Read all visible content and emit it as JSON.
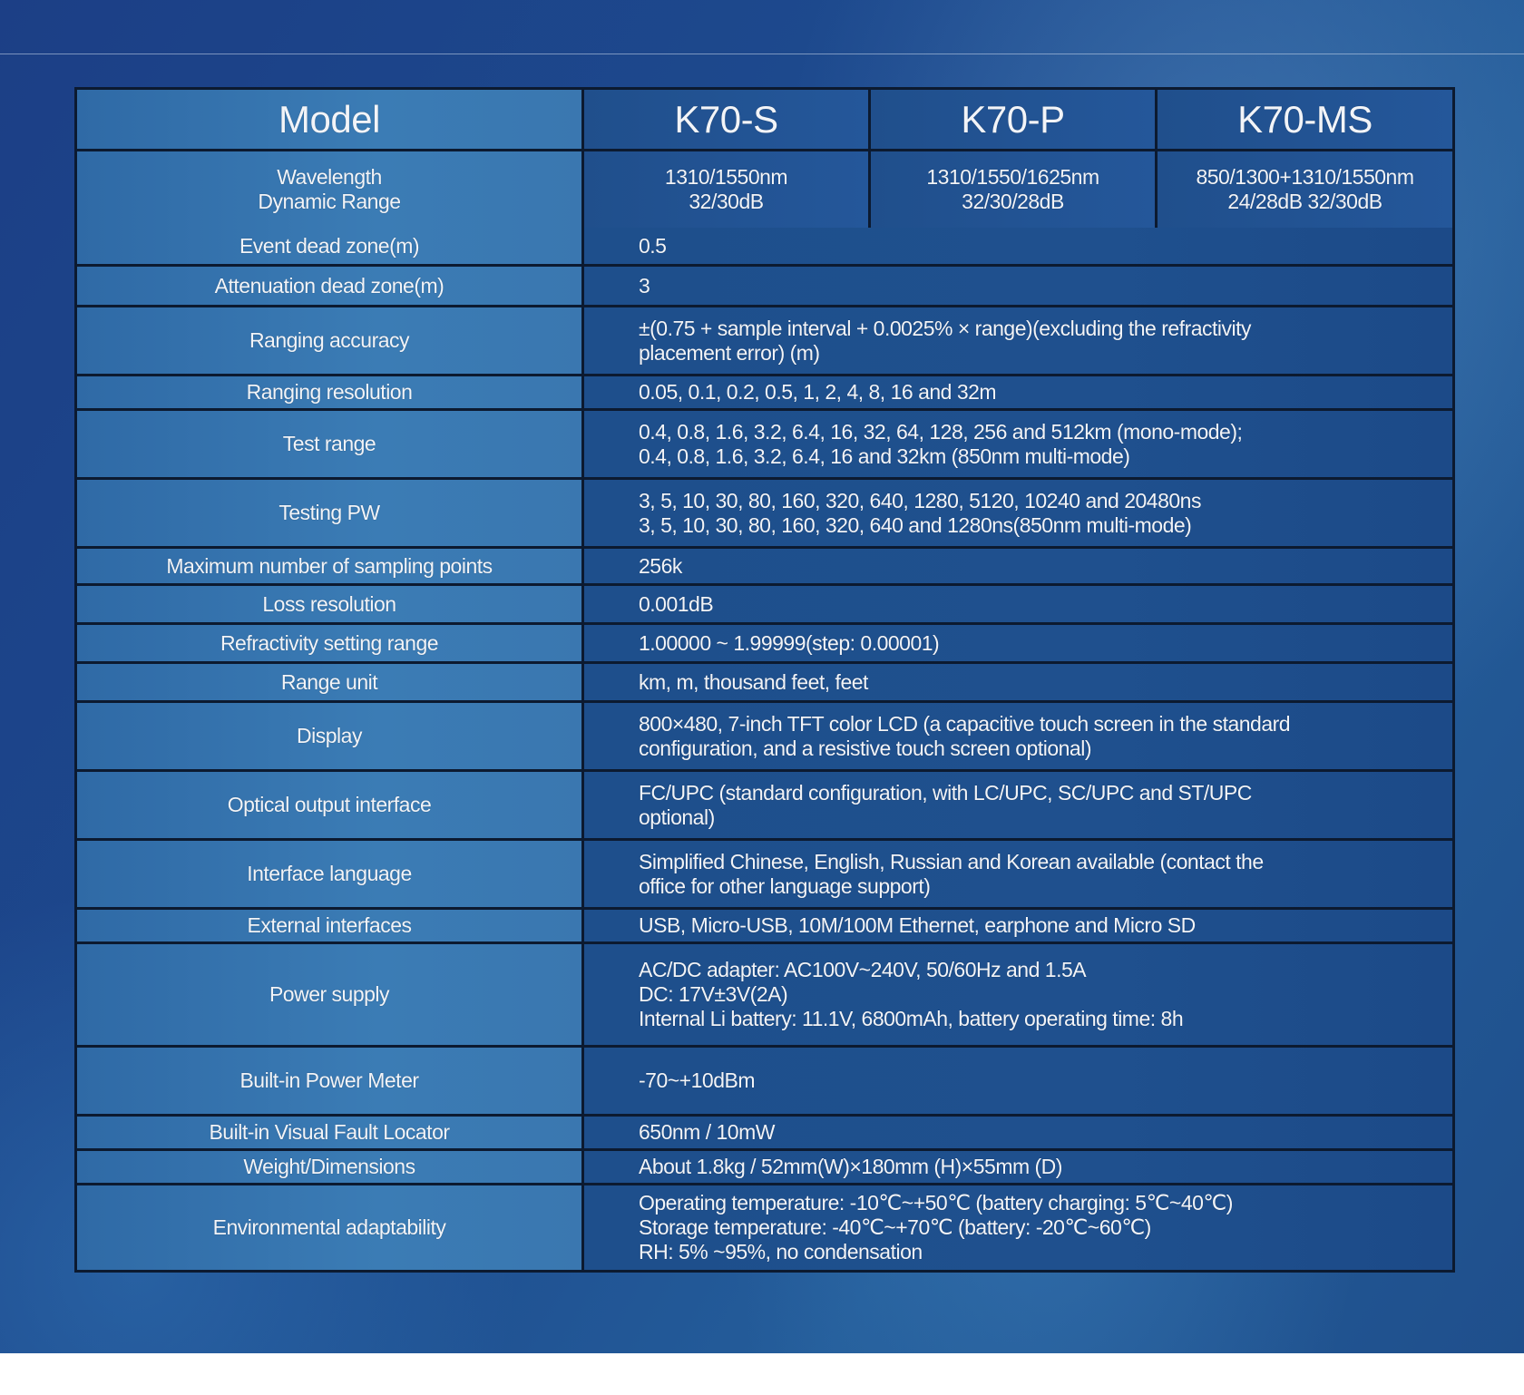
{
  "header": {
    "label": "Model",
    "models": [
      "K70-S",
      "K70-P",
      "K70-MS"
    ]
  },
  "wavelength_row": {
    "label": "Wavelength\nDynamic Range",
    "values": [
      "1310/1550nm\n32/30dB",
      "1310/1550/1625nm\n32/30/28dB",
      "850/1300+1310/1550nm\n24/28dB 32/30dB"
    ]
  },
  "rows": [
    {
      "label": "Event dead zone(m)",
      "value": "0.5"
    },
    {
      "label": "Attenuation dead zone(m)",
      "value": "3"
    },
    {
      "label": "Ranging accuracy",
      "value": "±(0.75 + sample interval + 0.0025% × range)(excluding the refractivity\nplacement error) (m)"
    },
    {
      "label": "Ranging resolution",
      "value": "0.05, 0.1, 0.2, 0.5, 1, 2, 4, 8, 16 and 32m"
    },
    {
      "label": "Test range",
      "value": "0.4, 0.8, 1.6, 3.2, 6.4, 16, 32, 64, 128, 256 and 512km (mono-mode);\n0.4, 0.8, 1.6, 3.2, 6.4, 16 and 32km (850nm multi-mode)"
    },
    {
      "label": "Testing PW",
      "value": "3, 5, 10, 30, 80, 160, 320, 640, 1280, 5120, 10240 and 20480ns\n3, 5, 10, 30, 80, 160, 320, 640 and 1280ns(850nm multi-mode)"
    },
    {
      "label": "Maximum number of sampling points",
      "value": "256k"
    },
    {
      "label": "Loss resolution",
      "value": "0.001dB"
    },
    {
      "label": "Refractivity  setting range",
      "value": "1.00000 ~ 1.99999(step: 0.00001)"
    },
    {
      "label": "Range unit",
      "value": "km, m, thousand feet, feet"
    },
    {
      "label": "Display",
      "value": "800×480, 7-inch TFT color LCD (a capacitive touch screen in the  standard\nconfiguration, and a resistive touch screen optional)"
    },
    {
      "label": "Optical  output  interface",
      "value": "FC/UPC (standard configuration, with LC/UPC, SC/UPC and ST/UPC\noptional)"
    },
    {
      "label": "Interface language",
      "value": "Simplified Chinese, English, Russian and Korean available (contact the\noffice for other language support)"
    },
    {
      "label": "External interfaces",
      "value": "USB, Micro-USB, 10M/100M Ethernet, earphone and Micro SD"
    },
    {
      "label": "Power supply",
      "value": "AC/DC adapter: AC100V~240V, 50/60Hz and 1.5A\nDC: 17V±3V(2A)\nInternal Li battery: 11.1V, 6800mAh, battery operating time: 8h"
    },
    {
      "label": "Built-in Power Meter",
      "value": "-70~+10dBm"
    },
    {
      "label": "Built-in Visual Fault Locator",
      "value": "650nm / 10mW"
    },
    {
      "label": "Weight/Dimensions",
      "value": "About 1.8kg / 52mm(W)×180mm (H)×55mm (D)"
    },
    {
      "label": "Environmental adaptability",
      "value": "Operating temperature: -10℃~+50℃ (battery charging: 5℃~40℃)\nStorage temperature: -40℃~+70℃ (battery: -20℃~60℃)\nRH: 5% ~95%, no condensation"
    }
  ]
}
